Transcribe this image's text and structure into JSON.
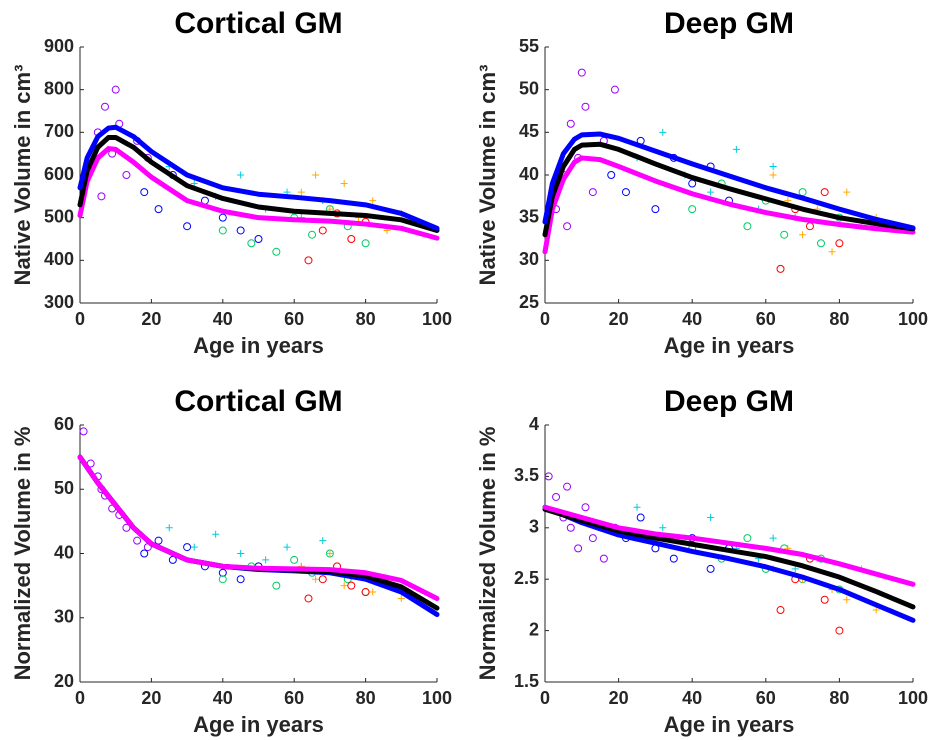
{
  "chart_data": [
    {
      "type": "line",
      "title": "Cortical GM",
      "xlabel": "Age in years",
      "ylabel": "Native Volume in cm³",
      "xlim": [
        0,
        100
      ],
      "xticks": [
        0,
        20,
        40,
        60,
        80,
        100
      ],
      "ylim": [
        300,
        900
      ],
      "yticks": [
        300,
        400,
        500,
        600,
        700,
        800,
        900
      ],
      "series": [
        {
          "style": "scatter",
          "marker": "o",
          "color": "#9900ff",
          "x": [
            3,
            5,
            7,
            9,
            11,
            13,
            16,
            19,
            6,
            10
          ],
          "values": [
            620,
            700,
            760,
            650,
            720,
            600,
            680,
            640,
            550,
            800
          ]
        },
        {
          "style": "scatter",
          "marker": "o",
          "color": "#0000ff",
          "x": [
            18,
            22,
            26,
            30,
            35,
            40,
            45,
            50
          ],
          "values": [
            560,
            520,
            600,
            480,
            540,
            500,
            470,
            450
          ]
        },
        {
          "style": "scatter",
          "marker": "+",
          "color": "#00ccdd",
          "x": [
            25,
            32,
            38,
            45,
            52,
            58,
            62,
            68
          ],
          "values": [
            620,
            580,
            550,
            600,
            520,
            560,
            500,
            540
          ]
        },
        {
          "style": "scatter",
          "marker": "o",
          "color": "#00cc66",
          "x": [
            40,
            48,
            55,
            60,
            65,
            70,
            75,
            80
          ],
          "values": [
            470,
            440,
            420,
            500,
            460,
            520,
            480,
            440
          ]
        },
        {
          "style": "scatter",
          "marker": "+",
          "color": "#ffaa00",
          "x": [
            62,
            66,
            70,
            74,
            78,
            82,
            86,
            90
          ],
          "values": [
            560,
            600,
            520,
            580,
            500,
            540,
            470,
            510
          ]
        },
        {
          "style": "scatter",
          "marker": "o",
          "color": "#ff0000",
          "x": [
            64,
            68,
            72,
            76,
            80
          ],
          "values": [
            400,
            470,
            510,
            450,
            490
          ]
        },
        {
          "style": "line",
          "color": "#ff00ff",
          "x": [
            0,
            2,
            5,
            8,
            10,
            15,
            20,
            30,
            40,
            50,
            60,
            70,
            80,
            90,
            100
          ],
          "values": [
            505,
            585,
            640,
            662,
            660,
            630,
            595,
            540,
            515,
            500,
            495,
            492,
            485,
            475,
            452
          ]
        },
        {
          "style": "line",
          "color": "#000000",
          "x": [
            0,
            2,
            5,
            8,
            10,
            15,
            20,
            30,
            40,
            50,
            60,
            70,
            80,
            90,
            100
          ],
          "values": [
            530,
            610,
            665,
            688,
            688,
            665,
            630,
            575,
            545,
            525,
            515,
            510,
            505,
            495,
            470
          ]
        },
        {
          "style": "line",
          "color": "#0000ff",
          "x": [
            0,
            2,
            5,
            8,
            10,
            15,
            20,
            30,
            40,
            50,
            60,
            70,
            80,
            90,
            100
          ],
          "values": [
            570,
            640,
            690,
            710,
            712,
            690,
            655,
            600,
            570,
            555,
            548,
            540,
            530,
            510,
            475
          ]
        }
      ]
    },
    {
      "type": "line",
      "title": "Deep GM",
      "xlabel": "Age in years",
      "ylabel": "Native Volume in cm³",
      "xlim": [
        0,
        100
      ],
      "xticks": [
        0,
        20,
        40,
        60,
        80,
        100
      ],
      "ylim": [
        25,
        55
      ],
      "yticks": [
        25,
        30,
        35,
        40,
        45,
        50,
        55
      ],
      "series": [
        {
          "style": "scatter",
          "marker": "o",
          "color": "#9900ff",
          "x": [
            3,
            5,
            7,
            9,
            11,
            13,
            16,
            19,
            6,
            10
          ],
          "values": [
            36,
            40,
            46,
            42,
            48,
            38,
            44,
            50,
            34,
            52
          ]
        },
        {
          "style": "scatter",
          "marker": "o",
          "color": "#0000ff",
          "x": [
            18,
            22,
            26,
            30,
            35,
            40,
            45,
            50
          ],
          "values": [
            40,
            38,
            44,
            36,
            42,
            39,
            41,
            37
          ]
        },
        {
          "style": "scatter",
          "marker": "+",
          "color": "#00ccdd",
          "x": [
            25,
            32,
            38,
            45,
            52,
            58,
            62,
            68
          ],
          "values": [
            42,
            45,
            40,
            38,
            43,
            36,
            41,
            35
          ]
        },
        {
          "style": "scatter",
          "marker": "o",
          "color": "#00cc66",
          "x": [
            40,
            48,
            55,
            60,
            65,
            70,
            75,
            80
          ],
          "values": [
            36,
            39,
            34,
            37,
            33,
            38,
            32,
            35
          ]
        },
        {
          "style": "scatter",
          "marker": "+",
          "color": "#ffaa00",
          "x": [
            62,
            66,
            70,
            74,
            78,
            82,
            86,
            90
          ],
          "values": [
            40,
            37,
            33,
            36,
            31,
            38,
            34,
            35
          ]
        },
        {
          "style": "scatter",
          "marker": "o",
          "color": "#ff0000",
          "x": [
            64,
            68,
            72,
            76,
            80
          ],
          "values": [
            29,
            36,
            34,
            38,
            32
          ]
        },
        {
          "style": "line",
          "color": "#ff00ff",
          "x": [
            0,
            2,
            5,
            8,
            10,
            15,
            20,
            30,
            40,
            50,
            60,
            70,
            80,
            90,
            100
          ],
          "values": [
            31,
            36,
            39.5,
            41.5,
            42,
            41.8,
            41,
            39.3,
            37.8,
            36.6,
            35.6,
            34.8,
            34.2,
            33.7,
            33.3
          ]
        },
        {
          "style": "line",
          "color": "#000000",
          "x": [
            0,
            2,
            5,
            8,
            10,
            15,
            20,
            30,
            40,
            50,
            60,
            70,
            80,
            90,
            100
          ],
          "values": [
            33,
            37.5,
            41,
            43,
            43.5,
            43.6,
            43,
            41.3,
            39.7,
            38.4,
            37.2,
            36,
            35,
            34.3,
            33.7
          ]
        },
        {
          "style": "line",
          "color": "#0000ff",
          "x": [
            0,
            2,
            5,
            8,
            10,
            15,
            20,
            30,
            40,
            50,
            60,
            70,
            80,
            90,
            100
          ],
          "values": [
            34.5,
            39,
            42.5,
            44.2,
            44.7,
            44.8,
            44.3,
            42.8,
            41.3,
            39.9,
            38.5,
            37.3,
            36,
            34.8,
            33.8
          ]
        }
      ]
    },
    {
      "type": "line",
      "title": "Cortical GM",
      "xlabel": "Age in years",
      "ylabel": "Normalized Volume in %",
      "xlim": [
        0,
        100
      ],
      "xticks": [
        0,
        20,
        40,
        60,
        80,
        100
      ],
      "ylim": [
        20,
        60
      ],
      "yticks": [
        20,
        30,
        40,
        50,
        60
      ],
      "series": [
        {
          "style": "scatter",
          "marker": "o",
          "color": "#9900ff",
          "x": [
            1,
            3,
            5,
            7,
            9,
            11,
            13,
            16,
            19,
            6
          ],
          "values": [
            59,
            54,
            52,
            49,
            47,
            46,
            44,
            42,
            41,
            50
          ]
        },
        {
          "style": "scatter",
          "marker": "o",
          "color": "#0000ff",
          "x": [
            18,
            22,
            26,
            30,
            35,
            40,
            45,
            50
          ],
          "values": [
            40,
            42,
            39,
            41,
            38,
            37,
            36,
            38
          ]
        },
        {
          "style": "scatter",
          "marker": "+",
          "color": "#00ccdd",
          "x": [
            25,
            32,
            38,
            45,
            52,
            58,
            62,
            68
          ],
          "values": [
            44,
            41,
            43,
            40,
            39,
            41,
            38,
            42
          ]
        },
        {
          "style": "scatter",
          "marker": "o",
          "color": "#00cc66",
          "x": [
            40,
            48,
            55,
            60,
            65,
            70,
            75,
            80
          ],
          "values": [
            36,
            38,
            35,
            39,
            37,
            40,
            36,
            34
          ]
        },
        {
          "style": "scatter",
          "marker": "+",
          "color": "#ffaa00",
          "x": [
            62,
            66,
            70,
            74,
            78,
            82,
            86,
            90
          ],
          "values": [
            38,
            36,
            40,
            35,
            37,
            34,
            36,
            33
          ]
        },
        {
          "style": "scatter",
          "marker": "o",
          "color": "#ff0000",
          "x": [
            64,
            68,
            72,
            76,
            80
          ],
          "values": [
            33,
            36,
            38,
            35,
            34
          ]
        },
        {
          "style": "line",
          "color": "#0000ff",
          "x": [
            0,
            5,
            10,
            15,
            20,
            30,
            40,
            50,
            60,
            70,
            80,
            90,
            100
          ],
          "values": [
            55,
            51,
            47.5,
            44,
            41.5,
            39,
            38,
            37.5,
            37.3,
            37,
            36,
            34,
            30.5
          ]
        },
        {
          "style": "line",
          "color": "#000000",
          "x": [
            0,
            5,
            10,
            15,
            20,
            30,
            40,
            50,
            60,
            70,
            80,
            90,
            100
          ],
          "values": [
            55,
            51,
            47.5,
            44,
            41.5,
            39,
            38,
            37.6,
            37.4,
            37.2,
            36.5,
            34.8,
            31.5
          ]
        },
        {
          "style": "line",
          "color": "#ff00ff",
          "x": [
            0,
            5,
            10,
            15,
            20,
            30,
            40,
            50,
            60,
            70,
            80,
            90,
            100
          ],
          "values": [
            55,
            51,
            47.5,
            44,
            41.5,
            39,
            38,
            37.7,
            37.6,
            37.5,
            37,
            35.8,
            33
          ]
        }
      ]
    },
    {
      "type": "line",
      "title": "Deep GM",
      "xlabel": "Age in years",
      "ylabel": "Normalized Volume in %",
      "xlim": [
        0,
        100
      ],
      "xticks": [
        0,
        20,
        40,
        60,
        80,
        100
      ],
      "ylim": [
        1.5,
        4
      ],
      "yticks": [
        1.5,
        2,
        2.5,
        3,
        3.5,
        4
      ],
      "series": [
        {
          "style": "scatter",
          "marker": "o",
          "color": "#9900ff",
          "x": [
            1,
            3,
            5,
            7,
            9,
            11,
            13,
            16,
            19,
            6
          ],
          "values": [
            3.5,
            3.3,
            3.1,
            3.0,
            2.8,
            3.2,
            2.9,
            2.7,
            3.0,
            3.4
          ]
        },
        {
          "style": "scatter",
          "marker": "o",
          "color": "#0000ff",
          "x": [
            18,
            22,
            26,
            30,
            35,
            40,
            45,
            50
          ],
          "values": [
            3.0,
            2.9,
            3.1,
            2.8,
            2.7,
            2.9,
            2.6,
            2.8
          ]
        },
        {
          "style": "scatter",
          "marker": "+",
          "color": "#00ccdd",
          "x": [
            25,
            32,
            38,
            45,
            52,
            58,
            62,
            68
          ],
          "values": [
            3.2,
            3.0,
            2.9,
            3.1,
            2.8,
            2.7,
            2.9,
            2.6
          ]
        },
        {
          "style": "scatter",
          "marker": "o",
          "color": "#00cc66",
          "x": [
            40,
            48,
            55,
            60,
            65,
            70,
            75,
            80
          ],
          "values": [
            2.8,
            2.7,
            2.9,
            2.6,
            2.8,
            2.5,
            2.7,
            2.4
          ]
        },
        {
          "style": "scatter",
          "marker": "+",
          "color": "#ffaa00",
          "x": [
            62,
            66,
            70,
            74,
            78,
            82,
            86,
            90
          ],
          "values": [
            2.6,
            2.8,
            2.5,
            2.7,
            2.4,
            2.3,
            2.6,
            2.2
          ]
        },
        {
          "style": "scatter",
          "marker": "o",
          "color": "#ff0000",
          "x": [
            64,
            68,
            72,
            76,
            80
          ],
          "values": [
            2.2,
            2.5,
            2.7,
            2.3,
            2.0
          ]
        },
        {
          "style": "line",
          "color": "#0000ff",
          "x": [
            0,
            10,
            20,
            30,
            40,
            50,
            60,
            70,
            80,
            90,
            100
          ],
          "values": [
            3.2,
            3.05,
            2.93,
            2.85,
            2.77,
            2.7,
            2.62,
            2.52,
            2.4,
            2.25,
            2.1
          ]
        },
        {
          "style": "line",
          "color": "#000000",
          "x": [
            0,
            10,
            20,
            30,
            40,
            50,
            60,
            70,
            80,
            90,
            100
          ],
          "values": [
            3.18,
            3.07,
            2.97,
            2.9,
            2.84,
            2.78,
            2.72,
            2.63,
            2.52,
            2.38,
            2.23
          ]
        },
        {
          "style": "line",
          "color": "#ff00ff",
          "x": [
            0,
            10,
            20,
            30,
            40,
            50,
            60,
            70,
            80,
            90,
            100
          ],
          "values": [
            3.2,
            3.1,
            3.0,
            2.94,
            2.9,
            2.85,
            2.8,
            2.74,
            2.65,
            2.55,
            2.45
          ]
        }
      ]
    }
  ]
}
